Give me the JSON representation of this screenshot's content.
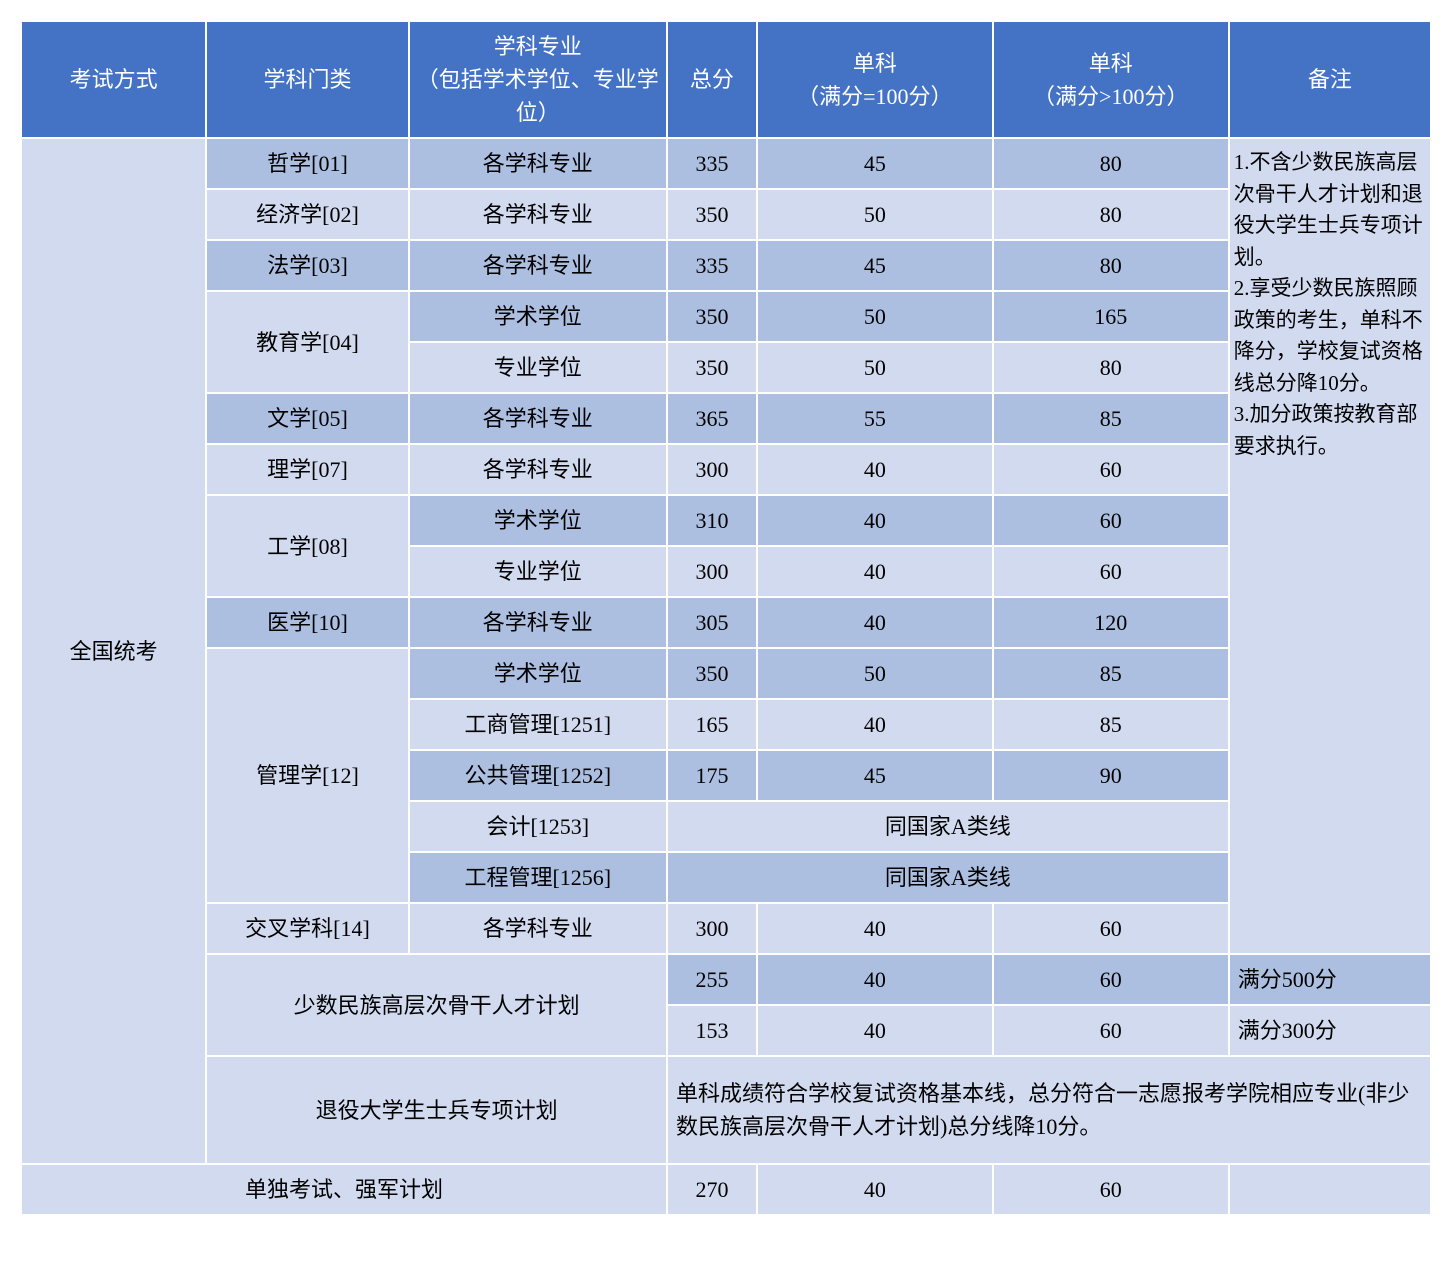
{
  "colors": {
    "header_bg": "#4473c5",
    "header_text": "#ffffff",
    "light_row": "#d1daee",
    "dark_row": "#acbfe0",
    "border": "#ffffff"
  },
  "header": {
    "exam_method": "考试方式",
    "category": "学科门类",
    "subject": "学科专业\n（包括学术学位、专业学位）",
    "total": "总分",
    "single1": "单科\n（满分=100分）",
    "single2": "单科\n（满分>100分）",
    "notes": "备注"
  },
  "exam_method_label": "全国统考",
  "rows": [
    {
      "cat": "哲学[01]",
      "sub": "各学科专业",
      "total": "335",
      "s1": "45",
      "s2": "80"
    },
    {
      "cat": "经济学[02]",
      "sub": "各学科专业",
      "total": "350",
      "s1": "50",
      "s2": "80"
    },
    {
      "cat": "法学[03]",
      "sub": "各学科专业",
      "total": "335",
      "s1": "45",
      "s2": "80"
    },
    {
      "cat": "教育学[04]",
      "sub": "学术学位",
      "total": "350",
      "s1": "50",
      "s2": "165"
    },
    {
      "cat": "",
      "sub": "专业学位",
      "total": "350",
      "s1": "50",
      "s2": "80"
    },
    {
      "cat": "文学[05]",
      "sub": "各学科专业",
      "total": "365",
      "s1": "55",
      "s2": "85"
    },
    {
      "cat": "理学[07]",
      "sub": "各学科专业",
      "total": "300",
      "s1": "40",
      "s2": "60"
    },
    {
      "cat": "工学[08]",
      "sub": "学术学位",
      "total": "310",
      "s1": "40",
      "s2": "60"
    },
    {
      "cat": "",
      "sub": "专业学位",
      "total": "300",
      "s1": "40",
      "s2": "60"
    },
    {
      "cat": "医学[10]",
      "sub": "各学科专业",
      "total": "305",
      "s1": "40",
      "s2": "120"
    },
    {
      "cat": "管理学[12]",
      "sub": "学术学位",
      "total": "350",
      "s1": "50",
      "s2": "85"
    },
    {
      "cat": "",
      "sub": "工商管理[1251]",
      "total": "165",
      "s1": "40",
      "s2": "85"
    },
    {
      "cat": "",
      "sub": "公共管理[1252]",
      "total": "175",
      "s1": "45",
      "s2": "90"
    },
    {
      "cat": "",
      "sub": "会计[1253]",
      "merged": "同国家A类线"
    },
    {
      "cat": "",
      "sub": "工程管理[1256]",
      "merged": "同国家A类线"
    },
    {
      "cat": "交叉学科[14]",
      "sub": "各学科专业",
      "total": "300",
      "s1": "40",
      "s2": "60"
    }
  ],
  "minority_plan_label": "少数民族高层次骨干人才计划",
  "minority_rows": [
    {
      "total": "255",
      "s1": "40",
      "s2": "60",
      "note": "满分500分"
    },
    {
      "total": "153",
      "s1": "40",
      "s2": "60",
      "note": "满分300分"
    }
  ],
  "veteran_plan_label": "退役大学生士兵专项计划",
  "veteran_text": "单科成绩符合学校复试资格基本线，总分符合一志愿报考学院相应专业(非少数民族高层次骨干人才计划)总分线降10分。",
  "independent_label": "单独考试、强军计划",
  "independent_row": {
    "total": "270",
    "s1": "40",
    "s2": "60"
  },
  "notes_text": "1.不含少数民族高层次骨干人才计划和退役大学生士兵专项计划。\n2.享受少数民族照顾政策的考生，单科不降分，学校复试资格线总分降10分。\n3.加分政策按教育部要求执行。"
}
